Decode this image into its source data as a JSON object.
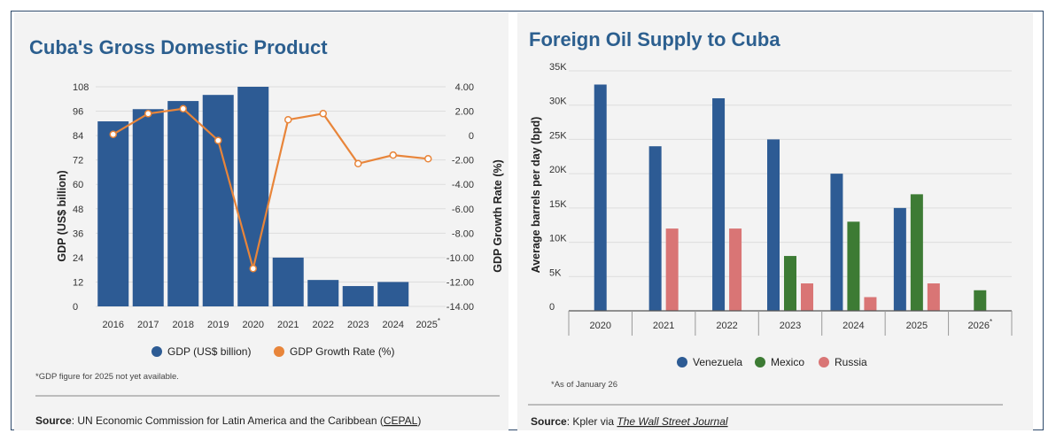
{
  "chart_data": [
    {
      "type": "bar",
      "title": "Cuba's Gross Domestic Product",
      "categories": [
        "2016",
        "2017",
        "2018",
        "2019",
        "2020",
        "2021",
        "2022",
        "2023",
        "2024",
        "2025"
      ],
      "category_suffix": {
        "2025": "*"
      },
      "series": [
        {
          "name": "GDP (US$ billion)",
          "type": "bar",
          "axis": "left",
          "color": "#2d5b94",
          "values": [
            91,
            97,
            101,
            104,
            108,
            24,
            13,
            10,
            12,
            null
          ]
        },
        {
          "name": "GDP Growth Rate (%)",
          "type": "line",
          "axis": "right",
          "color": "#e8853a",
          "values": [
            0.1,
            1.8,
            2.2,
            -0.4,
            -10.9,
            1.3,
            1.8,
            -2.3,
            -1.6,
            -1.9
          ]
        }
      ],
      "ylabel": "GDP (US$ billion)",
      "ylim": [
        0,
        108
      ],
      "yticks": [
        0,
        12,
        24,
        36,
        48,
        60,
        72,
        84,
        96,
        108
      ],
      "y2label": "GDP Growth Rate (%)",
      "y2lim": [
        -14,
        4
      ],
      "y2ticks": [
        "4.00",
        "2.00",
        "0",
        "-2.00",
        "-4.00",
        "-6.00",
        "-8.00",
        "-10.00",
        "-12.00",
        "-14.00"
      ],
      "legend_position": "bottom",
      "footnote": "*GDP figure for 2025 not yet available.",
      "source_label": "Source",
      "source_text": ": UN Economic Commission for Latin America and the Caribbean (",
      "source_link": "CEPAL",
      "source_end": ")"
    },
    {
      "type": "bar",
      "title": "Foreign Oil Supply to Cuba",
      "categories": [
        "2020",
        "2021",
        "2022",
        "2023",
        "2024",
        "2025",
        "2026"
      ],
      "category_suffix": {
        "2026": "*"
      },
      "series": [
        {
          "name": "Venezuela",
          "color": "#2d5b94",
          "values": [
            33000,
            24000,
            31000,
            25000,
            20000,
            15000,
            null
          ]
        },
        {
          "name": "Mexico",
          "color": "#3d7b34",
          "values": [
            null,
            null,
            null,
            8000,
            13000,
            17000,
            3000
          ]
        },
        {
          "name": "Russia",
          "color": "#d97575",
          "values": [
            null,
            12000,
            12000,
            4000,
            2000,
            4000,
            null
          ]
        }
      ],
      "ylabel": "Average barrels per day (bpd)",
      "ylim": [
        0,
        35000
      ],
      "yticks": [
        "0",
        "5K",
        "10K",
        "15K",
        "20K",
        "25K",
        "30K",
        "35K"
      ],
      "legend_position": "bottom",
      "footnote": "*As of January 26",
      "source_label": "Source",
      "source_text": ": Kpler via ",
      "source_link": "The Wall Street Journal"
    }
  ]
}
